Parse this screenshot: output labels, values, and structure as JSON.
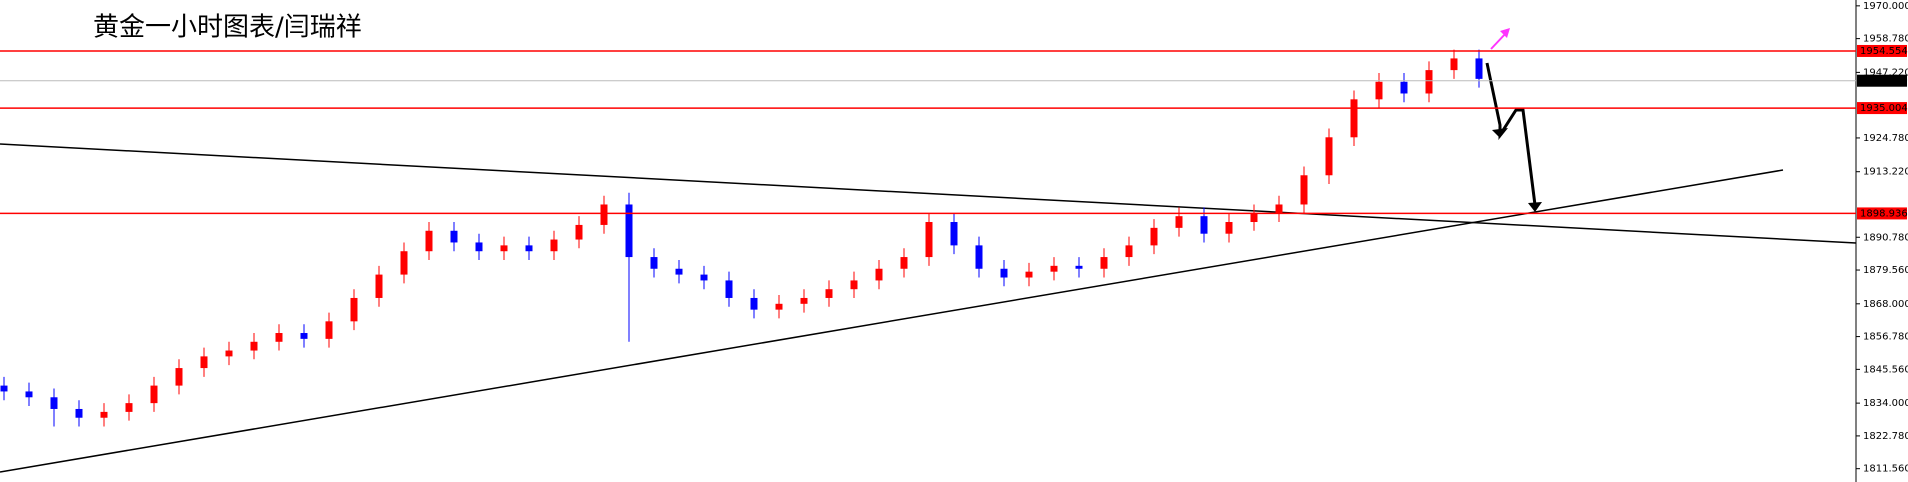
{
  "chart_data": {
    "type": "candlestick",
    "title": "黄金一小时图表/闫瑞祥",
    "up_color": "#ff0000",
    "down_color": "#0000ff",
    "ylim": [
      1807,
      1972
    ],
    "yticks": [
      {
        "value": 1970,
        "label": "1970.000"
      },
      {
        "value": 1958.78,
        "label": "1958.780"
      },
      {
        "value": 1947.22,
        "label": "1947.220"
      },
      {
        "value": 1924.78,
        "label": "1924.780"
      },
      {
        "value": 1913.22,
        "label": "1913.220"
      },
      {
        "value": 1890.78,
        "label": "1890.780"
      },
      {
        "value": 1879.56,
        "label": "1879.560"
      },
      {
        "value": 1868,
        "label": "1868.000"
      },
      {
        "value": 1856.78,
        "label": "1856.780"
      },
      {
        "value": 1845.56,
        "label": "1845.560"
      },
      {
        "value": 1834,
        "label": "1834.000"
      },
      {
        "value": 1822.78,
        "label": "1822.780"
      },
      {
        "value": 1811.56,
        "label": "1811.560"
      }
    ],
    "levels": [
      {
        "value": 1954.554,
        "label": "1954.554"
      },
      {
        "value": 1935.004,
        "label": "1935.004"
      },
      {
        "value": 1898.936,
        "label": "1898.936"
      }
    ],
    "level_color": "#ff0000",
    "current_price": {
      "value": 1944.37,
      "label": "1944.370"
    },
    "open": [
      1840,
      1838,
      1836,
      1832,
      1829,
      1831,
      1834,
      1840,
      1846,
      1850,
      1852,
      1855,
      1858,
      1856,
      1862,
      1870,
      1878,
      1886,
      1893,
      1889,
      1886,
      1888,
      1886,
      1890,
      1895,
      1902,
      1884,
      1880,
      1878,
      1876,
      1870,
      1866,
      1868,
      1870,
      1873,
      1876,
      1880,
      1884,
      1896,
      1888,
      1880,
      1877,
      1879,
      1881,
      1880,
      1884,
      1888,
      1894,
      1898,
      1892,
      1896,
      1899,
      1902,
      1912,
      1925,
      1938,
      1944,
      1940,
      1948,
      1952
    ],
    "high": [
      1843,
      1841,
      1839,
      1835,
      1834,
      1837,
      1843,
      1849,
      1853,
      1855,
      1858,
      1861,
      1861,
      1865,
      1873,
      1881,
      1889,
      1896,
      1896,
      1892,
      1891,
      1891,
      1893,
      1898,
      1905,
      1906,
      1887,
      1883,
      1881,
      1879,
      1873,
      1871,
      1873,
      1876,
      1879,
      1883,
      1887,
      1899,
      1899,
      1891,
      1883,
      1882,
      1884,
      1884,
      1887,
      1891,
      1897,
      1901,
      1901,
      1899,
      1902,
      1905,
      1915,
      1928,
      1941,
      1947,
      1947,
      1951,
      1955,
      1955
    ],
    "low": [
      1835,
      1833,
      1826,
      1826,
      1826,
      1828,
      1831,
      1837,
      1843,
      1847,
      1849,
      1852,
      1853,
      1853,
      1859,
      1867,
      1875,
      1883,
      1886,
      1883,
      1883,
      1883,
      1883,
      1887,
      1892,
      1855,
      1877,
      1875,
      1873,
      1867,
      1863,
      1863,
      1865,
      1867,
      1870,
      1873,
      1877,
      1881,
      1885,
      1877,
      1874,
      1874,
      1876,
      1877,
      1877,
      1881,
      1885,
      1891,
      1889,
      1889,
      1893,
      1896,
      1899,
      1909,
      1922,
      1935,
      1937,
      1937,
      1945,
      1942
    ],
    "close": [
      1838,
      1836,
      1832,
      1829,
      1831,
      1834,
      1840,
      1846,
      1850,
      1852,
      1855,
      1858,
      1856,
      1862,
      1870,
      1878,
      1886,
      1893,
      1889,
      1886,
      1888,
      1886,
      1890,
      1895,
      1902,
      1884,
      1880,
      1878,
      1876,
      1870,
      1866,
      1868,
      1870,
      1873,
      1876,
      1880,
      1884,
      1896,
      1888,
      1880,
      1877,
      1879,
      1881,
      1880,
      1884,
      1888,
      1894,
      1898,
      1892,
      1896,
      1899,
      1902,
      1912,
      1925,
      1938,
      1944,
      1940,
      1948,
      1952,
      1945
    ]
  }
}
